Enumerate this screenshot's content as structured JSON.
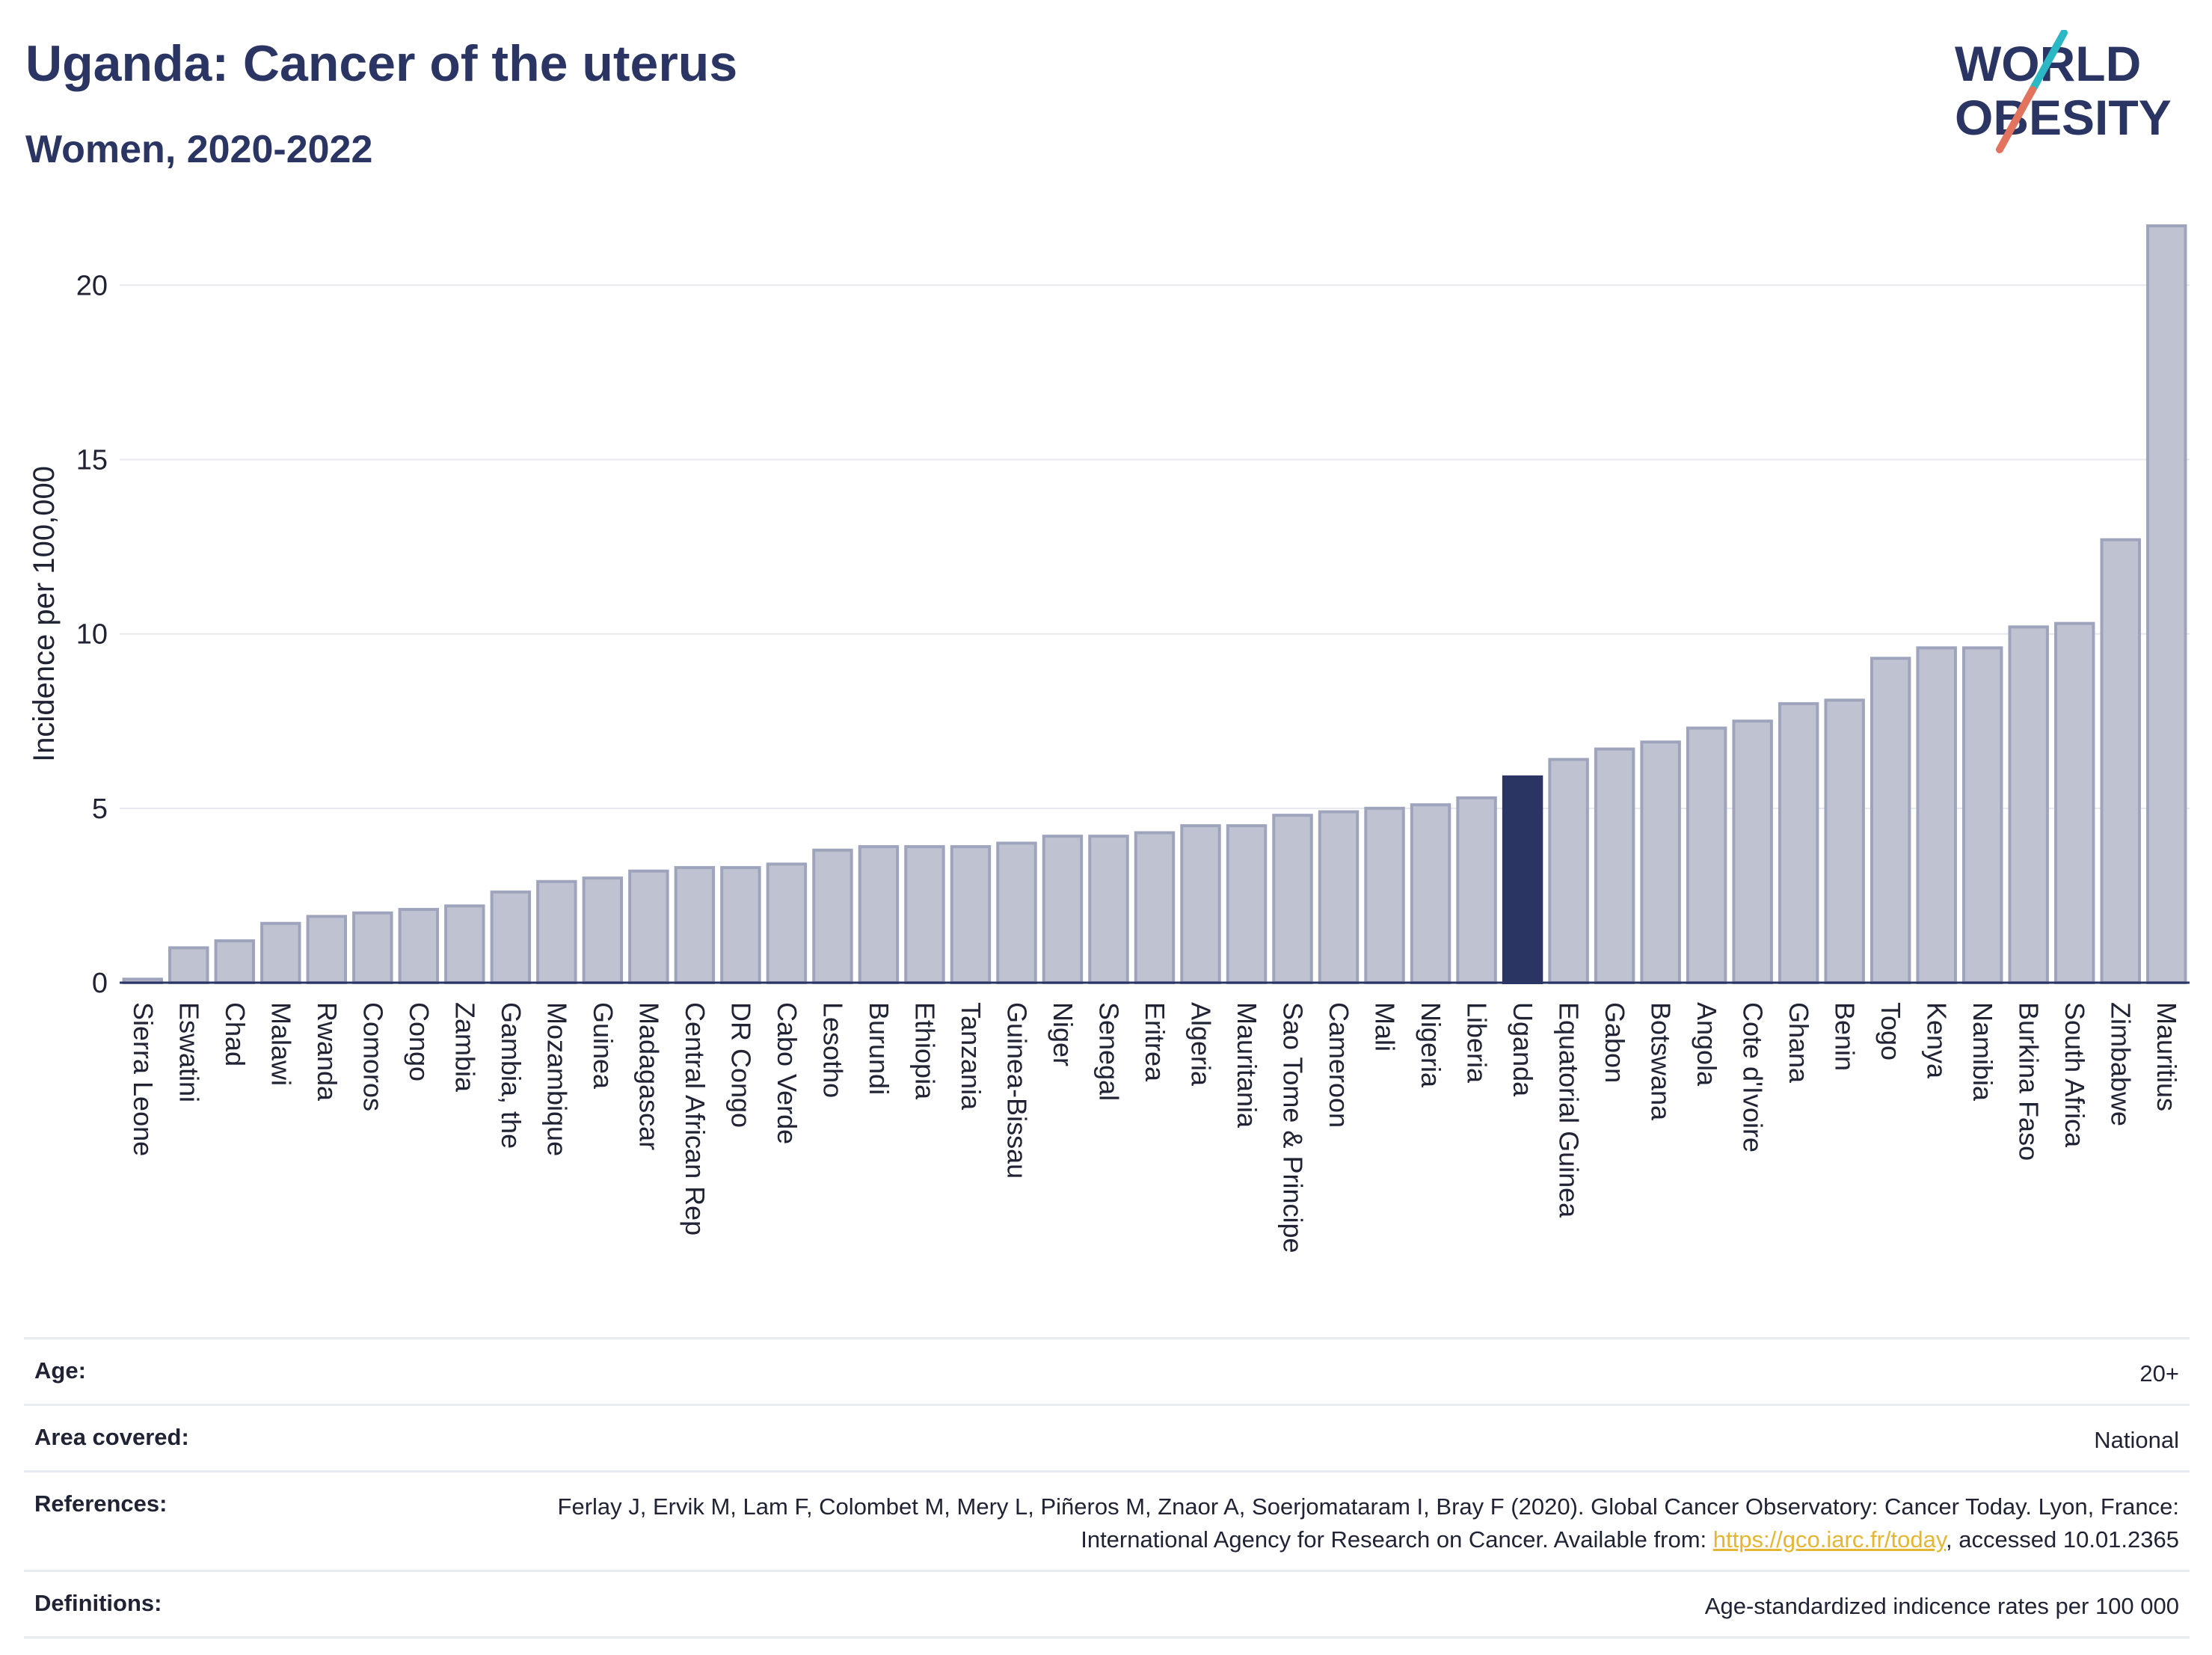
{
  "header": {
    "title": "Uganda: Cancer of the uterus",
    "subtitle": "Women, 2020-2022"
  },
  "logo": {
    "line1": "WORLD",
    "line2": "OBESITY",
    "slash_colors": [
      "#2bb7c3",
      "#e2735f"
    ],
    "text_color": "#2b3563"
  },
  "colors": {
    "bar_default": "#bfc3d1",
    "bar_stroke": "#9ea4bc",
    "bar_highlight": "#2b3563",
    "grid": "#e6e8ee",
    "axis": "#2b3563"
  },
  "chart_data": {
    "type": "bar",
    "ylabel": "Incidence per 100,000",
    "ylim": [
      0,
      22
    ],
    "yticks": [
      0,
      5,
      10,
      15,
      20
    ],
    "grid": true,
    "highlight": "Uganda",
    "categories": [
      "Sierra Leone",
      "Eswatini",
      "Chad",
      "Malawi",
      "Rwanda",
      "Comoros",
      "Congo",
      "Zambia",
      "Gambia, the",
      "Mozambique",
      "Guinea",
      "Madagascar",
      "Central African Rep",
      "DR Congo",
      "Cabo Verde",
      "Lesotho",
      "Burundi",
      "Ethiopia",
      "Tanzania",
      "Guinea-Bissau",
      "Niger",
      "Senegal",
      "Eritrea",
      "Algeria",
      "Mauritania",
      "Sao Tome & Principe",
      "Cameroon",
      "Mali",
      "Nigeria",
      "Liberia",
      "Uganda",
      "Equatorial Guinea",
      "Gabon",
      "Botswana",
      "Angola",
      "Cote d'Ivoire",
      "Ghana",
      "Benin",
      "Togo",
      "Kenya",
      "Namibia",
      "Burkina Faso",
      "South Africa",
      "Zimbabwe",
      "Mauritius"
    ],
    "values": [
      0.1,
      1.0,
      1.2,
      1.7,
      1.9,
      2.0,
      2.1,
      2.2,
      2.6,
      2.9,
      3.0,
      3.2,
      3.3,
      3.3,
      3.4,
      3.8,
      3.9,
      3.9,
      3.9,
      4.0,
      4.2,
      4.2,
      4.3,
      4.5,
      4.5,
      4.8,
      4.9,
      5.0,
      5.1,
      5.3,
      5.9,
      6.4,
      6.7,
      6.9,
      7.3,
      7.5,
      8.0,
      8.1,
      9.3,
      9.6,
      9.6,
      10.2,
      10.3,
      12.7,
      21.7
    ]
  },
  "info": {
    "age_label": "Age:",
    "age_value": "20+",
    "area_label": "Area covered:",
    "area_value": "National",
    "references_label": "References:",
    "references_text_1": "Ferlay J, Ervik M, Lam F, Colombet M, Mery L, Piñeros M, Znaor A, Soerjomataram I, Bray F (2020). Global Cancer Observatory: Cancer Today. Lyon, France: International Agency for Research on Cancer. Available from: ",
    "references_link": "https://gco.iarc.fr/today",
    "references_text_2": ", accessed 10.01.2365",
    "definitions_label": "Definitions:",
    "definitions_value": "Age-standardized indicence rates per 100 000"
  }
}
